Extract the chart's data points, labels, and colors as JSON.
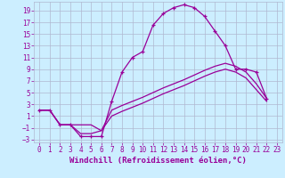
{
  "xlabel": "Windchill (Refroidissement éolien,°C)",
  "bg_color": "#cceeff",
  "grid_color": "#b0b8d0",
  "line_color": "#990099",
  "xlim": [
    -0.5,
    23.5
  ],
  "ylim": [
    -3.5,
    20.5
  ],
  "xticks": [
    0,
    1,
    2,
    3,
    4,
    5,
    6,
    7,
    8,
    9,
    10,
    11,
    12,
    13,
    14,
    15,
    16,
    17,
    18,
    19,
    20,
    21,
    22,
    23
  ],
  "yticks": [
    -3,
    -1,
    1,
    3,
    5,
    7,
    9,
    11,
    13,
    15,
    17,
    19
  ],
  "curves": [
    {
      "x": [
        0,
        1,
        2,
        3,
        4,
        5,
        6,
        7,
        8,
        9,
        10,
        11,
        12,
        13,
        14,
        15,
        16,
        17,
        18,
        19,
        20,
        21,
        22
      ],
      "y": [
        2,
        2,
        -0.5,
        -0.5,
        -2.5,
        -2.5,
        -2.5,
        3.5,
        8.5,
        11,
        12,
        16.5,
        18.5,
        19.5,
        20,
        19.5,
        18,
        15.5,
        13,
        9,
        9,
        8.5,
        4
      ],
      "marker": true
    },
    {
      "x": [
        0,
        1,
        2,
        3,
        4,
        5,
        6,
        7,
        8,
        9,
        10,
        11,
        12,
        13,
        14,
        15,
        16,
        17,
        18,
        19,
        20,
        21,
        22
      ],
      "y": [
        2,
        2,
        -0.5,
        -0.5,
        -0.5,
        -0.5,
        -1.5,
        2.0,
        2.8,
        3.5,
        4.2,
        5.0,
        5.8,
        6.5,
        7.2,
        8.0,
        8.8,
        9.5,
        10.0,
        9.5,
        8.5,
        6.5,
        4.0
      ],
      "marker": false
    },
    {
      "x": [
        0,
        1,
        2,
        3,
        4,
        5,
        6,
        7,
        8,
        9,
        10,
        11,
        12,
        13,
        14,
        15,
        16,
        17,
        18,
        19,
        20,
        21,
        22
      ],
      "y": [
        2,
        2,
        -0.5,
        -0.5,
        -2.0,
        -2.0,
        -1.5,
        1.0,
        1.8,
        2.5,
        3.2,
        4.0,
        4.8,
        5.5,
        6.2,
        7.0,
        7.8,
        8.5,
        9.0,
        8.5,
        7.5,
        5.5,
        3.5
      ],
      "marker": false
    }
  ],
  "xlabel_fontsize": 6.5,
  "tick_fontsize": 5.5
}
